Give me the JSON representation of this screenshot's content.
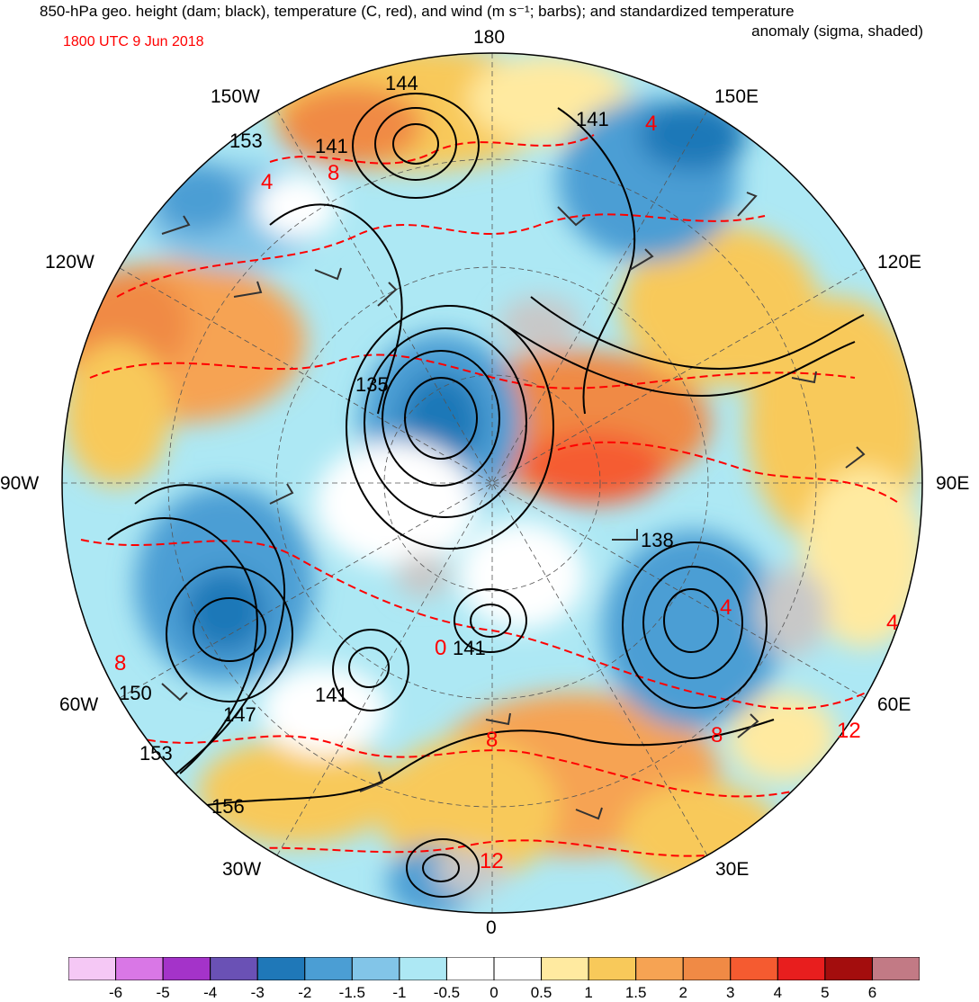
{
  "title": {
    "line1": "850-hPa geo. height (dam; black), temperature (C, red), and wind (m s⁻¹; barbs); and standardized temperature",
    "line2": "anomaly (sigma, shaded)",
    "timestamp": "1800 UTC 9 Jun 2018"
  },
  "longitude_labels": {
    "n180": "180",
    "w150": "150W",
    "e150": "150E",
    "w120": "120W",
    "e120": "120E",
    "w90": "90W",
    "e90": "90E",
    "w60": "60W",
    "e60": "60E",
    "w30": "30W",
    "e30": "30E",
    "s0": "0"
  },
  "height_contour_labels": [
    "144",
    "141",
    "153",
    "141",
    "135",
    "138",
    "141",
    "141",
    "150",
    "147",
    "153",
    "156"
  ],
  "temperature_contour_labels": [
    "4",
    "8",
    "4",
    "4",
    "8",
    "0",
    "8",
    "8",
    "12",
    "12",
    "4"
  ],
  "colorbar": {
    "colors": [
      "#f5c8f5",
      "#d977e6",
      "#a433c9",
      "#6a51b5",
      "#1f78b8",
      "#4b9ed4",
      "#82c5e8",
      "#ade8f4",
      "#ffffff",
      "#ffffff",
      "#ffeaa0",
      "#f8c95a",
      "#f6a353",
      "#f08a45",
      "#f55b30",
      "#e81e1e",
      "#a30d0d",
      "#c27a85"
    ],
    "ticks": [
      "-6",
      "-5",
      "-4",
      "-3",
      "-2",
      "-1.5",
      "-1",
      "-0.5",
      "0",
      "0.5",
      "1",
      "1.5",
      "2",
      "3",
      "4",
      "5",
      "6"
    ]
  },
  "colors": {
    "height_contour": "#000000",
    "temperature_contour": "#ff0000",
    "wind_barb": "#333333",
    "land_mask": "#c8c8c8"
  }
}
